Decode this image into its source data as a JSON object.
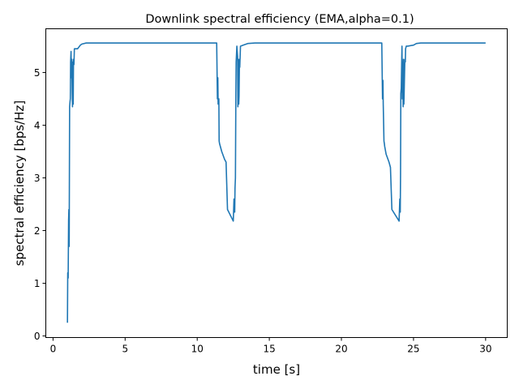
{
  "chart_data": {
    "type": "line",
    "title": "Downlink spectral efficiency (EMA,alpha=0.1)",
    "xlabel": "time [s]",
    "ylabel": "spectral efficiency [bps/Hz]",
    "xlim": [
      -0.5,
      31.5
    ],
    "ylim": [
      -0.03,
      5.83
    ],
    "xticks": [
      0,
      5,
      10,
      15,
      20,
      25,
      30
    ],
    "yticks": [
      0,
      1,
      2,
      3,
      4,
      5
    ],
    "grid": false,
    "legend": "none",
    "colors": {
      "line": "#1f77b4",
      "axes": "#000000",
      "background": "#ffffff"
    },
    "series": [
      {
        "x": [
          1.0,
          1.02,
          1.05,
          1.08,
          1.1,
          1.12,
          1.15,
          1.18,
          1.2,
          1.22,
          1.25,
          1.28,
          1.3,
          1.33,
          1.35,
          1.38,
          1.4,
          1.42,
          1.45,
          1.48,
          1.5,
          1.55,
          1.6,
          1.7,
          1.9,
          2.0,
          2.3,
          2.7,
          3.0,
          11.35,
          11.4,
          11.43,
          11.45,
          11.5,
          11.52,
          11.55,
          11.6,
          11.7,
          11.9,
          12.0,
          12.1,
          12.5,
          12.55,
          12.6,
          12.62,
          12.65,
          12.68,
          12.7,
          12.75,
          12.8,
          12.82,
          12.85,
          12.88,
          12.9,
          12.93,
          12.95,
          13.0,
          13.2,
          13.5,
          14.0,
          14.3,
          22.8,
          22.85,
          22.88,
          22.9,
          22.93,
          22.95,
          22.98,
          23.0,
          23.1,
          23.3,
          23.4,
          23.5,
          24.0,
          24.05,
          24.08,
          24.1,
          24.12,
          24.15,
          24.18,
          24.2,
          24.22,
          24.25,
          24.28,
          24.3,
          24.33,
          24.35,
          24.38,
          24.4,
          24.43,
          24.45,
          24.5,
          24.6,
          25.0,
          25.2,
          25.5,
          30.0
        ],
        "y": [
          0.25,
          1.2,
          1.1,
          2.2,
          2.4,
          1.7,
          4.35,
          4.45,
          4.5,
          5.2,
          5.4,
          4.9,
          5.25,
          4.6,
          4.35,
          5.2,
          4.4,
          5.25,
          5.15,
          5.45,
          5.45,
          5.45,
          5.45,
          5.45,
          5.52,
          5.54,
          5.56,
          5.56,
          5.56,
          5.56,
          4.5,
          4.9,
          4.4,
          4.5,
          3.7,
          3.65,
          3.6,
          3.5,
          3.35,
          3.3,
          2.4,
          2.18,
          2.6,
          2.35,
          2.8,
          3.0,
          4.6,
          5.2,
          5.5,
          5.3,
          4.35,
          5.25,
          4.4,
          4.55,
          5.25,
          5.1,
          5.5,
          5.52,
          5.55,
          5.56,
          5.56,
          5.56,
          4.5,
          4.85,
          4.4,
          4.0,
          3.7,
          3.65,
          3.6,
          3.45,
          3.3,
          3.2,
          2.4,
          2.18,
          2.6,
          2.35,
          3.05,
          4.6,
          4.7,
          5.2,
          5.5,
          4.5,
          5.2,
          4.35,
          5.25,
          4.4,
          4.6,
          5.0,
          5.25,
          5.2,
          5.45,
          5.5,
          5.5,
          5.52,
          5.55,
          5.56,
          5.56
        ]
      }
    ]
  }
}
